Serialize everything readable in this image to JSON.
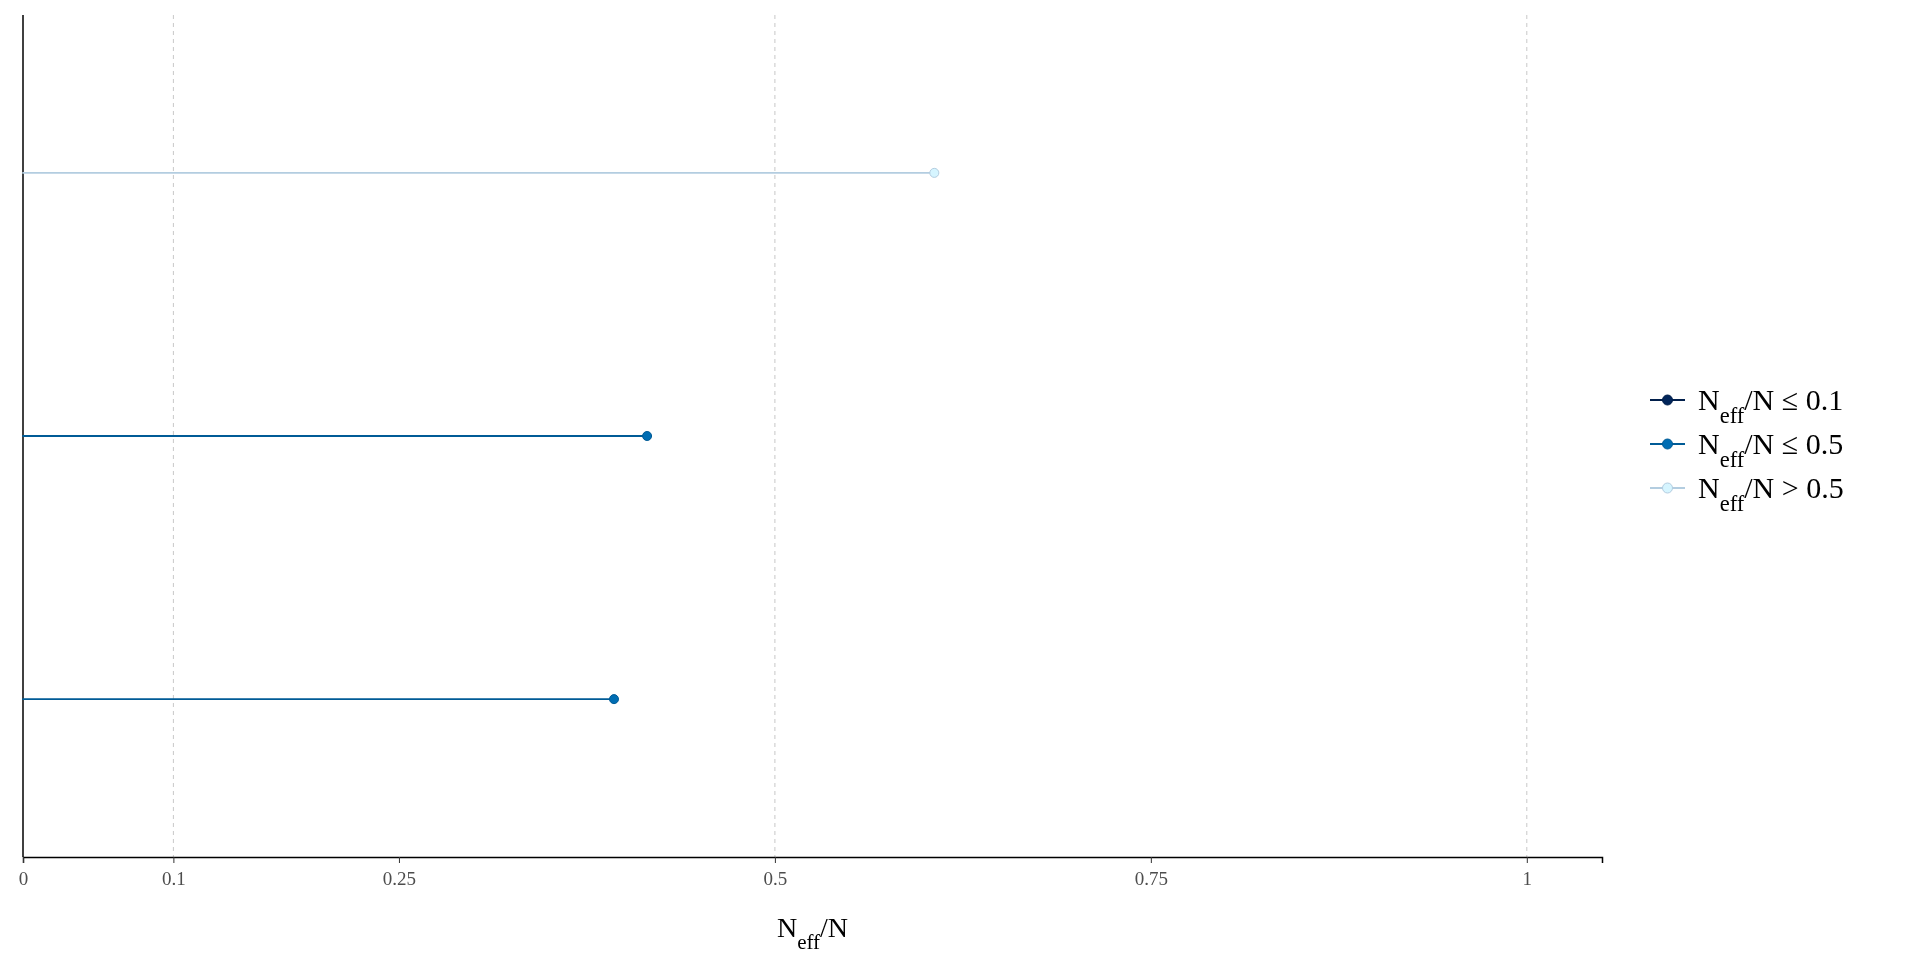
{
  "chart_data": {
    "type": "lollipop",
    "orientation": "horizontal",
    "categories": [
      null,
      null,
      null
    ],
    "xlabel": "N$_{eff}$/N",
    "xlim": [
      0,
      1.05
    ],
    "xticks": [
      0,
      0.1,
      0.25,
      0.5,
      0.75,
      1
    ],
    "series": [
      {
        "name": "N$_{eff}$/N ≤ 0.1",
        "color": "#011f4b",
        "values": [
          null,
          null,
          null
        ]
      },
      {
        "name": "N$_{eff}$/N ≤ 0.5",
        "color": "#005b96",
        "values": [
          null,
          0.415,
          0.393
        ]
      },
      {
        "name": "N$_{eff}$/N > 0.5",
        "color": "#b3cde0",
        "values": [
          0.606,
          null,
          null
        ]
      }
    ],
    "ref_lines": [
      {
        "axis": "x",
        "value": 0.1,
        "color": "#c8c8c8",
        "line_style": "dashed"
      },
      {
        "axis": "x",
        "value": 0.5,
        "color": "#c8c8c8",
        "line_style": "dashed"
      },
      {
        "axis": "x",
        "value": 1,
        "color": "#c8c8c8",
        "line_style": "dashed"
      }
    ],
    "marker": "circle",
    "legend": "right",
    "grid": false
  }
}
